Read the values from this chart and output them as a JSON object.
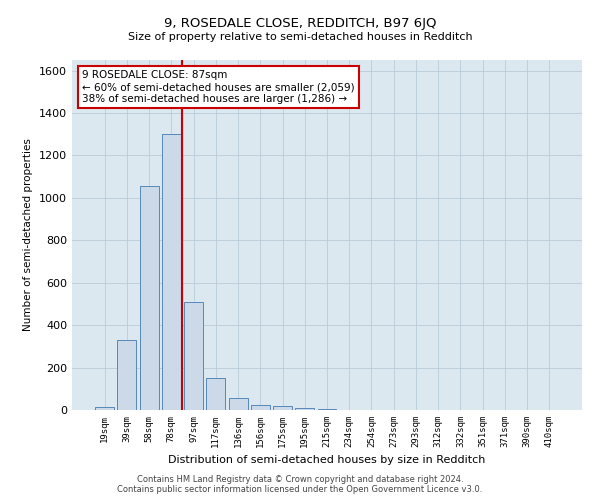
{
  "title": "9, ROSEDALE CLOSE, REDDITCH, B97 6JQ",
  "subtitle": "Size of property relative to semi-detached houses in Redditch",
  "xlabel": "Distribution of semi-detached houses by size in Redditch",
  "ylabel": "Number of semi-detached properties",
  "footer_line1": "Contains HM Land Registry data © Crown copyright and database right 2024.",
  "footer_line2": "Contains public sector information licensed under the Open Government Licence v3.0.",
  "annotation_title": "9 ROSEDALE CLOSE: 87sqm",
  "annotation_line1": "← 60% of semi-detached houses are smaller (2,059)",
  "annotation_line2": "38% of semi-detached houses are larger (1,286) →",
  "bar_color": "#ccd9e8",
  "bar_edge_color": "#5588bb",
  "vline_color": "#cc0000",
  "annotation_box_color": "#ffffff",
  "annotation_box_edge": "#cc0000",
  "background_color": "#ffffff",
  "plot_bg_color": "#dce8f0",
  "grid_color": "#b8ccd8",
  "categories": [
    "19sqm",
    "39sqm",
    "58sqm",
    "78sqm",
    "97sqm",
    "117sqm",
    "136sqm",
    "156sqm",
    "175sqm",
    "195sqm",
    "215sqm",
    "234sqm",
    "254sqm",
    "273sqm",
    "293sqm",
    "312sqm",
    "332sqm",
    "351sqm",
    "371sqm",
    "390sqm",
    "410sqm"
  ],
  "values": [
    15,
    330,
    1055,
    1300,
    510,
    150,
    55,
    25,
    18,
    8,
    3,
    1,
    0,
    0,
    0,
    0,
    0,
    0,
    0,
    0,
    0
  ],
  "vline_x": 3.47,
  "ylim": [
    0,
    1650
  ],
  "yticks": [
    0,
    200,
    400,
    600,
    800,
    1000,
    1200,
    1400,
    1600
  ]
}
